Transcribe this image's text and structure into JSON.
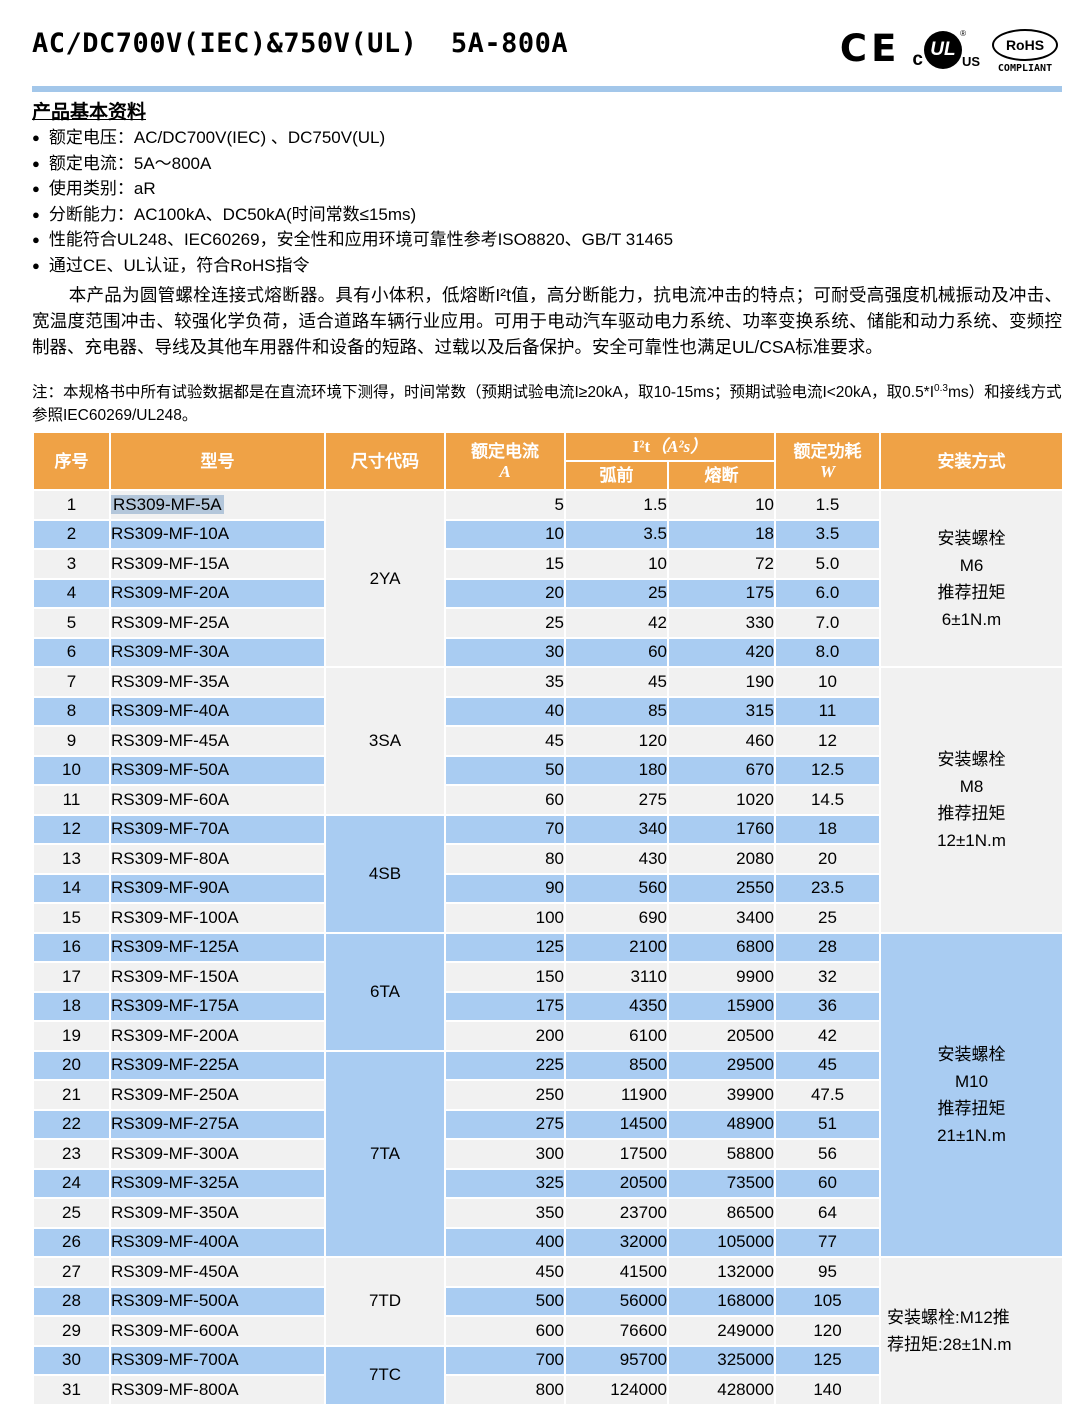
{
  "header": {
    "title": "AC/DC700V(IEC)&750V(UL)  5A-800A",
    "logos": {
      "ce": "CE",
      "ul_c": "c",
      "ul_text": "UL",
      "ul_reg": "®",
      "ul_us": "US",
      "rohs": "RoHS",
      "rohs_compliant": "COMPLIANT"
    }
  },
  "info": {
    "heading": "产品基本资料",
    "bullets": [
      "额定电压：AC/DC700V(IEC) 、DC750V(UL)",
      "额定电流：5A～800A",
      "使用类别：aR",
      "分断能力：AC100kA、DC50kA(时间常数≤15ms)",
      "性能符合UL248、IEC60269，安全性和应用环境可靠性参考ISO8820、GB/T 31465",
      "通过CE、UL认证，符合RoHS指令"
    ],
    "description": "本产品为圆管螺栓连接式熔断器。具有小体积，低熔断I²t值，高分断能力，抗电流冲击的特点；可耐受高强度机械振动及冲击、宽温度范围冲击、较强化学负荷，适合道路车辆行业应用。可用于电动汽车驱动电力系统、功率变换系统、储能和动力系统、变频控制器、充电器、导线及其他车用器件和设备的短路、过载以及后备保护。安全可靠性也满足UL/CSA标准要求。"
  },
  "note": {
    "before_sup": "注：本规格书中所有试验数据都是在直流环境下测得，时间常数（预期试验电流I≥20kA，取10-15ms；预期试验电流I<20kA，取0.5*I",
    "sup": "0.3",
    "after_sup": "ms）和接线方式参照IEC60269/UL248。"
  },
  "table": {
    "headers": {
      "no": "序号",
      "model": "型号",
      "size": "尺寸代码",
      "current": "额定电流",
      "current_unit": "A",
      "i2t": "I²t",
      "i2t_unit": "（A²s）",
      "prearc": "弧前",
      "melt": "熔断",
      "power": "额定功耗",
      "power_unit": "W",
      "mount": "安装方式"
    },
    "rows": [
      {
        "no": "1",
        "model": "RS309-MF-5A",
        "current": "5",
        "prearc": "1.5",
        "melt": "10",
        "power": "1.5",
        "highlight": true
      },
      {
        "no": "2",
        "model": "RS309-MF-10A",
        "current": "10",
        "prearc": "3.5",
        "melt": "18",
        "power": "3.5"
      },
      {
        "no": "3",
        "model": "RS309-MF-15A",
        "current": "15",
        "prearc": "10",
        "melt": "72",
        "power": "5.0"
      },
      {
        "no": "4",
        "model": "RS309-MF-20A",
        "current": "20",
        "prearc": "25",
        "melt": "175",
        "power": "6.0"
      },
      {
        "no": "5",
        "model": "RS309-MF-25A",
        "current": "25",
        "prearc": "42",
        "melt": "330",
        "power": "7.0"
      },
      {
        "no": "6",
        "model": "RS309-MF-30A",
        "current": "30",
        "prearc": "60",
        "melt": "420",
        "power": "8.0"
      },
      {
        "no": "7",
        "model": "RS309-MF-35A",
        "current": "35",
        "prearc": "45",
        "melt": "190",
        "power": "10"
      },
      {
        "no": "8",
        "model": "RS309-MF-40A",
        "current": "40",
        "prearc": "85",
        "melt": "315",
        "power": "11"
      },
      {
        "no": "9",
        "model": "RS309-MF-45A",
        "current": "45",
        "prearc": "120",
        "melt": "460",
        "power": "12"
      },
      {
        "no": "10",
        "model": "RS309-MF-50A",
        "current": "50",
        "prearc": "180",
        "melt": "670",
        "power": "12.5"
      },
      {
        "no": "11",
        "model": "RS309-MF-60A",
        "current": "60",
        "prearc": "275",
        "melt": "1020",
        "power": "14.5"
      },
      {
        "no": "12",
        "model": "RS309-MF-70A",
        "current": "70",
        "prearc": "340",
        "melt": "1760",
        "power": "18"
      },
      {
        "no": "13",
        "model": "RS309-MF-80A",
        "current": "80",
        "prearc": "430",
        "melt": "2080",
        "power": "20"
      },
      {
        "no": "14",
        "model": "RS309-MF-90A",
        "current": "90",
        "prearc": "560",
        "melt": "2550",
        "power": "23.5"
      },
      {
        "no": "15",
        "model": "RS309-MF-100A",
        "current": "100",
        "prearc": "690",
        "melt": "3400",
        "power": "25"
      },
      {
        "no": "16",
        "model": "RS309-MF-125A",
        "current": "125",
        "prearc": "2100",
        "melt": "6800",
        "power": "28"
      },
      {
        "no": "17",
        "model": "RS309-MF-150A",
        "current": "150",
        "prearc": "3110",
        "melt": "9900",
        "power": "32"
      },
      {
        "no": "18",
        "model": "RS309-MF-175A",
        "current": "175",
        "prearc": "4350",
        "melt": "15900",
        "power": "36"
      },
      {
        "no": "19",
        "model": "RS309-MF-200A",
        "current": "200",
        "prearc": "6100",
        "melt": "20500",
        "power": "42"
      },
      {
        "no": "20",
        "model": "RS309-MF-225A",
        "current": "225",
        "prearc": "8500",
        "melt": "29500",
        "power": "45"
      },
      {
        "no": "21",
        "model": "RS309-MF-250A",
        "current": "250",
        "prearc": "11900",
        "melt": "39900",
        "power": "47.5"
      },
      {
        "no": "22",
        "model": "RS309-MF-275A",
        "current": "275",
        "prearc": "14500",
        "melt": "48900",
        "power": "51"
      },
      {
        "no": "23",
        "model": "RS309-MF-300A",
        "current": "300",
        "prearc": "17500",
        "melt": "58800",
        "power": "56"
      },
      {
        "no": "24",
        "model": "RS309-MF-325A",
        "current": "325",
        "prearc": "20500",
        "melt": "73500",
        "power": "60"
      },
      {
        "no": "25",
        "model": "RS309-MF-350A",
        "current": "350",
        "prearc": "23700",
        "melt": "86500",
        "power": "64"
      },
      {
        "no": "26",
        "model": "RS309-MF-400A",
        "current": "400",
        "prearc": "32000",
        "melt": "105000",
        "power": "77"
      },
      {
        "no": "27",
        "model": "RS309-MF-450A",
        "current": "450",
        "prearc": "41500",
        "melt": "132000",
        "power": "95"
      },
      {
        "no": "28",
        "model": "RS309-MF-500A",
        "current": "500",
        "prearc": "56000",
        "melt": "168000",
        "power": "105"
      },
      {
        "no": "29",
        "model": "RS309-MF-600A",
        "current": "600",
        "prearc": "76600",
        "melt": "249000",
        "power": "120"
      },
      {
        "no": "30",
        "model": "RS309-MF-700A",
        "current": "700",
        "prearc": "95700",
        "melt": "325000",
        "power": "125"
      },
      {
        "no": "31",
        "model": "RS309-MF-800A",
        "current": "800",
        "prearc": "124000",
        "melt": "428000",
        "power": "140"
      }
    ],
    "size_groups": [
      {
        "start": 1,
        "span": 6,
        "code": "2YA"
      },
      {
        "start": 7,
        "span": 5,
        "code": "3SA"
      },
      {
        "start": 12,
        "span": 4,
        "code": "4SB"
      },
      {
        "start": 16,
        "span": 4,
        "code": "6TA"
      },
      {
        "start": 20,
        "span": 7,
        "code": "7TA"
      },
      {
        "start": 27,
        "span": 3,
        "code": "7TD"
      },
      {
        "start": 30,
        "span": 2,
        "code": "7TC"
      }
    ],
    "mount_groups": [
      {
        "start": 1,
        "span": 6,
        "text": "安装螺栓\nM6\n推荐扭矩\n6±1N.m",
        "align": "center"
      },
      {
        "start": 7,
        "span": 9,
        "text": "安装螺栓\nM8\n推荐扭矩\n12±1N.m",
        "align": "center"
      },
      {
        "start": 16,
        "span": 11,
        "text": "安装螺栓\nM10\n推荐扭矩\n21±1N.m",
        "align": "center"
      },
      {
        "start": 27,
        "span": 5,
        "text": "安装螺栓:M12推\n荐扭矩:28±1N.m",
        "align": "left"
      }
    ]
  },
  "colors": {
    "header_bg": "#EFA246",
    "stripe_blue": "#A9CCF2",
    "stripe_gray": "#F1F1F1",
    "rule_blue": "#A3C7EA",
    "selection_highlight": "#B3C6DA"
  }
}
